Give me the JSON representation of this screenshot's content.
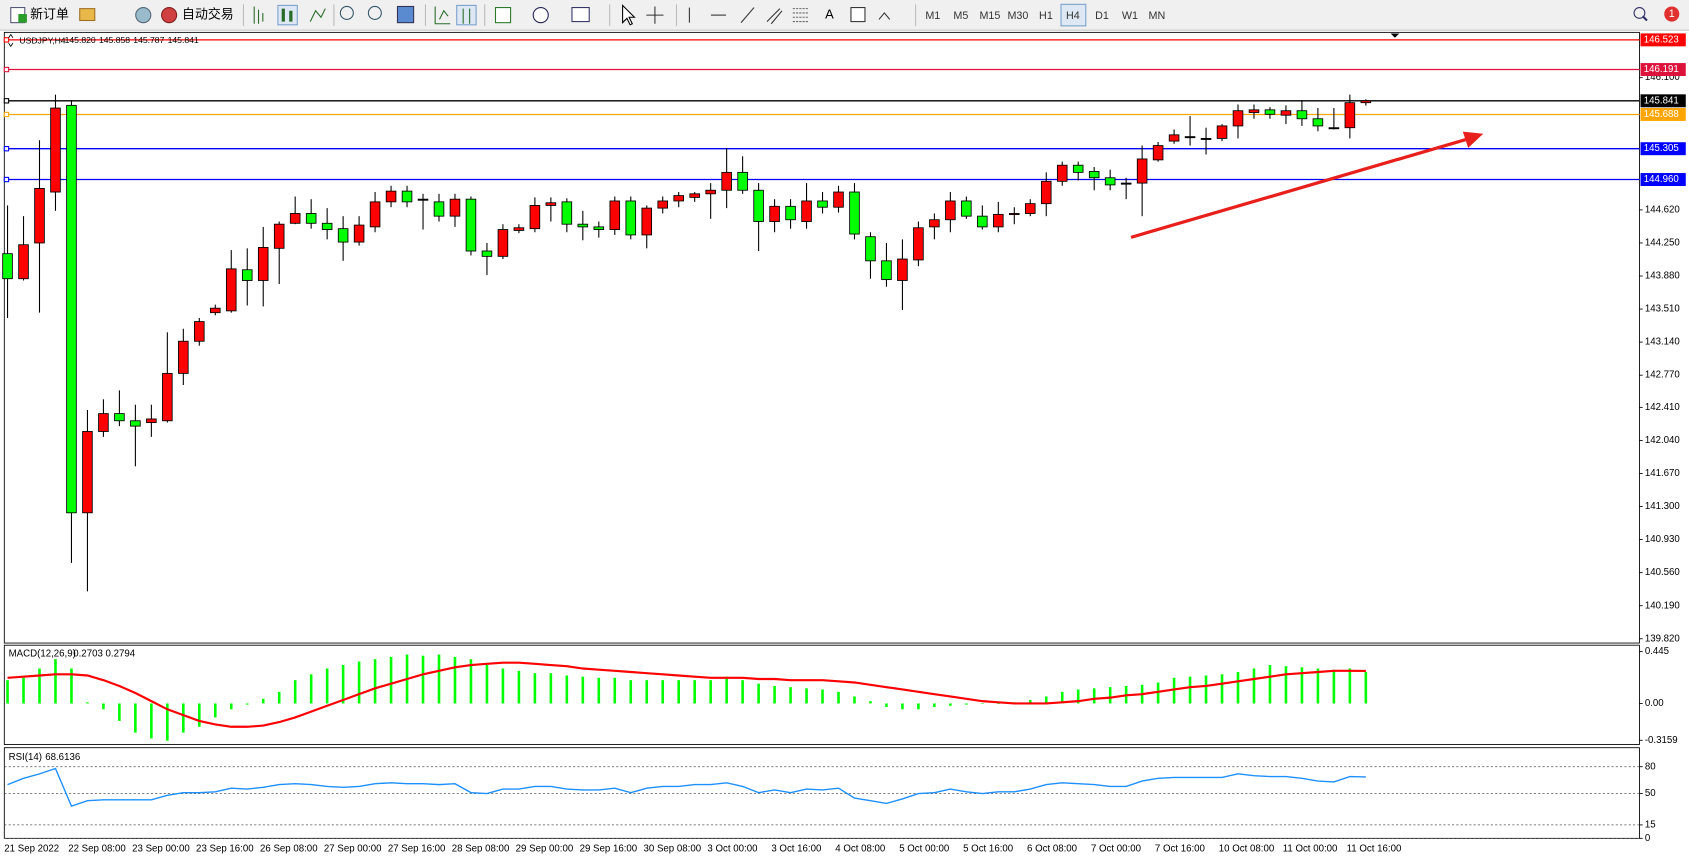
{
  "toolbar": {
    "new_order": "新订单",
    "auto_trading": "自动交易",
    "text_tool": "A",
    "timeframes": [
      "M1",
      "M5",
      "M15",
      "M30",
      "H1",
      "H4",
      "D1",
      "W1",
      "MN"
    ],
    "alert_count": 1
  },
  "chart_data": [
    {
      "type": "candlestick",
      "symbol": "USDJPY,H4",
      "header_prices": [
        "145.820",
        "145.858",
        "145.787",
        "145.841"
      ],
      "up_color": "#ff0000",
      "down_color": "#00ff00",
      "x": [
        "21 Sep 2022",
        null,
        null,
        null,
        "22 Sep 08:00",
        null,
        null,
        null,
        "23 Sep 00:00",
        null,
        null,
        null,
        "23 Sep 16:00",
        null,
        null,
        null,
        "26 Sep 08:00",
        null,
        null,
        null,
        "27 Sep 00:00",
        null,
        null,
        null,
        "27 Sep 16:00",
        null,
        null,
        null,
        "28 Sep 08:00",
        null,
        null,
        null,
        "29 Sep 00:00",
        null,
        null,
        null,
        "29 Sep 16:00",
        null,
        null,
        null,
        "30 Sep 08:00",
        null,
        null,
        null,
        "3 Oct 00:00",
        null,
        null,
        null,
        "3 Oct 16:00",
        null,
        null,
        null,
        "4 Oct 08:00",
        null,
        null,
        null,
        "5 Oct 00:00",
        null,
        null,
        null,
        "5 Oct 16:00",
        null,
        null,
        null,
        "6 Oct 08:00",
        null,
        null,
        null,
        "7 Oct 00:00",
        null,
        null,
        null,
        "7 Oct 16:00",
        null,
        null,
        null,
        "10 Oct 08:00",
        null,
        null,
        null,
        "11 Oct 00:00",
        null,
        null,
        null,
        "11 Oct 16:00",
        null
      ],
      "open": [
        144.13,
        143.85,
        144.25,
        144.82,
        145.79,
        141.23,
        142.14,
        142.34,
        142.26,
        142.24,
        142.26,
        142.79,
        143.15,
        143.47,
        143.49,
        143.95,
        143.83,
        144.19,
        144.47,
        144.58,
        144.47,
        144.41,
        144.26,
        144.43,
        144.71,
        144.83,
        144.74,
        144.71,
        144.55,
        144.74,
        144.16,
        144.1,
        144.39,
        144.41,
        144.67,
        144.71,
        144.46,
        144.43,
        144.4,
        144.72,
        144.34,
        144.64,
        144.72,
        144.76,
        144.8,
        144.84,
        145.04,
        144.84,
        144.49,
        144.66,
        144.49,
        144.72,
        144.65,
        144.82,
        144.32,
        144.05,
        143.83,
        144.06,
        144.43,
        144.51,
        144.72,
        144.55,
        144.43,
        144.57,
        144.58,
        144.69,
        144.94,
        145.12,
        145.05,
        144.98,
        144.92,
        144.92,
        145.18,
        145.39,
        145.44,
        145.42,
        145.42,
        145.56,
        145.71,
        145.74,
        145.68,
        145.73,
        145.64,
        145.54,
        145.54,
        145.82
      ],
      "high": [
        144.67,
        144.55,
        145.4,
        145.91,
        145.85,
        142.38,
        142.5,
        142.6,
        142.44,
        142.44,
        143.25,
        143.29,
        143.41,
        143.56,
        144.17,
        144.19,
        144.43,
        144.49,
        144.77,
        144.74,
        144.64,
        144.55,
        144.55,
        144.82,
        144.89,
        144.89,
        144.8,
        144.8,
        144.8,
        144.77,
        144.25,
        144.46,
        144.46,
        144.76,
        144.76,
        144.75,
        144.61,
        144.49,
        144.77,
        144.77,
        144.67,
        144.77,
        144.82,
        144.82,
        144.92,
        145.31,
        145.22,
        144.92,
        144.74,
        144.74,
        144.92,
        144.82,
        144.89,
        144.92,
        144.37,
        144.25,
        144.29,
        144.49,
        144.58,
        144.82,
        144.77,
        144.67,
        144.71,
        144.65,
        144.74,
        145.04,
        145.16,
        145.16,
        145.1,
        145.07,
        144.98,
        145.34,
        145.38,
        145.52,
        145.67,
        145.54,
        145.58,
        145.8,
        145.8,
        145.77,
        145.79,
        145.85,
        145.76,
        145.76,
        145.91,
        145.858
      ],
      "low": [
        143.41,
        143.83,
        143.47,
        144.61,
        140.67,
        140.35,
        142.08,
        142.2,
        141.75,
        142.08,
        142.24,
        142.66,
        143.1,
        143.44,
        143.47,
        143.55,
        143.54,
        143.79,
        144.46,
        144.41,
        144.29,
        144.05,
        144.22,
        144.37,
        144.65,
        144.65,
        144.4,
        144.49,
        144.43,
        144.11,
        143.89,
        144.07,
        144.36,
        144.37,
        144.49,
        144.37,
        144.28,
        144.31,
        144.34,
        144.29,
        144.19,
        144.58,
        144.65,
        144.71,
        144.52,
        144.64,
        144.8,
        144.16,
        144.37,
        144.41,
        144.41,
        144.58,
        144.59,
        144.29,
        143.85,
        143.76,
        143.5,
        143.99,
        144.29,
        144.37,
        144.52,
        144.4,
        144.37,
        144.46,
        144.55,
        144.55,
        144.89,
        144.95,
        144.84,
        144.84,
        144.74,
        144.55,
        145.16,
        145.36,
        145.34,
        145.24,
        145.39,
        145.42,
        145.64,
        145.64,
        145.58,
        145.56,
        145.5,
        145.52,
        145.42,
        145.787
      ],
      "close": [
        143.85,
        144.23,
        144.86,
        145.76,
        141.23,
        142.14,
        142.34,
        142.26,
        142.2,
        142.28,
        142.79,
        143.15,
        143.37,
        143.52,
        143.96,
        143.83,
        144.2,
        144.46,
        144.58,
        144.47,
        144.4,
        144.26,
        144.45,
        144.71,
        144.83,
        144.71,
        144.74,
        144.55,
        144.74,
        144.16,
        144.1,
        144.4,
        144.42,
        144.67,
        144.7,
        144.46,
        144.43,
        144.4,
        144.72,
        144.34,
        144.64,
        144.72,
        144.78,
        144.8,
        144.84,
        145.04,
        144.84,
        144.49,
        144.66,
        144.51,
        144.72,
        144.65,
        144.82,
        144.35,
        144.05,
        143.84,
        144.07,
        144.42,
        144.51,
        144.72,
        144.55,
        144.43,
        144.57,
        144.58,
        144.69,
        144.94,
        145.12,
        145.04,
        144.98,
        144.9,
        144.92,
        145.19,
        145.34,
        145.46,
        145.44,
        145.42,
        145.56,
        145.73,
        145.74,
        145.69,
        145.73,
        145.64,
        145.56,
        145.54,
        145.82,
        145.841
      ],
      "ylim": [
        139.772,
        146.607
      ],
      "yticks": [
        {
          "value": 146.1,
          "label": "146.100"
        },
        {
          "value": 144.62,
          "label": "144.620"
        },
        {
          "value": 144.25,
          "label": "144.250"
        },
        {
          "value": 143.88,
          "label": "143.880"
        },
        {
          "value": 143.51,
          "label": "143.510"
        },
        {
          "value": 143.14,
          "label": "143.140"
        },
        {
          "value": 142.77,
          "label": "142.770"
        },
        {
          "value": 142.41,
          "label": "142.410"
        },
        {
          "value": 142.04,
          "label": "142.040"
        },
        {
          "value": 141.67,
          "label": "141.670"
        },
        {
          "value": 141.3,
          "label": "141.300"
        },
        {
          "value": 140.93,
          "label": "140.930"
        },
        {
          "value": 140.56,
          "label": "140.560"
        },
        {
          "value": 140.19,
          "label": "140.190"
        },
        {
          "value": 139.82,
          "label": "139.820"
        }
      ],
      "levels": [
        {
          "value": 146.523,
          "color": "#ff0000"
        },
        {
          "value": 146.191,
          "color": "#dc143c"
        },
        {
          "value": 145.841,
          "color": "#000000"
        },
        {
          "value": 145.688,
          "color": "#ffa500"
        },
        {
          "value": 145.305,
          "color": "#0000ff"
        },
        {
          "value": 144.96,
          "label": "144.960",
          "color": "#0000ff"
        }
      ]
    },
    {
      "type": "macd",
      "title": "MACD(12,26,9)",
      "histogram_color": "#00ff00",
      "signal_color": "#ff0000",
      "histogram": [
        0.2,
        0.22,
        0.3,
        0.38,
        0.3,
        0.01,
        -0.05,
        -0.15,
        -0.25,
        -0.3,
        -0.32,
        -0.25,
        -0.2,
        -0.12,
        -0.05,
        -0.01,
        0.04,
        0.1,
        0.2,
        0.25,
        0.3,
        0.33,
        0.36,
        0.38,
        0.4,
        0.42,
        0.41,
        0.42,
        0.4,
        0.38,
        0.33,
        0.3,
        0.28,
        0.26,
        0.26,
        0.24,
        0.23,
        0.22,
        0.22,
        0.2,
        0.2,
        0.2,
        0.2,
        0.2,
        0.2,
        0.23,
        0.2,
        0.17,
        0.15,
        0.14,
        0.13,
        0.12,
        0.1,
        0.06,
        0.02,
        -0.03,
        -0.05,
        -0.05,
        -0.03,
        -0.02,
        -0.01,
        0,
        0,
        0.01,
        0.03,
        0.06,
        0.1,
        0.12,
        0.13,
        0.14,
        0.15,
        0.16,
        0.18,
        0.22,
        0.23,
        0.24,
        0.25,
        0.27,
        0.3,
        0.33,
        0.32,
        0.31,
        0.3,
        0.29,
        0.3,
        0.2703
      ],
      "signal": [
        0.22,
        0.23,
        0.24,
        0.25,
        0.25,
        0.24,
        0.2,
        0.15,
        0.09,
        0.02,
        -0.05,
        -0.1,
        -0.15,
        -0.18,
        -0.2,
        -0.2,
        -0.19,
        -0.16,
        -0.12,
        -0.07,
        -0.02,
        0.03,
        0.08,
        0.13,
        0.17,
        0.21,
        0.25,
        0.28,
        0.31,
        0.33,
        0.34,
        0.35,
        0.35,
        0.34,
        0.33,
        0.32,
        0.3,
        0.29,
        0.28,
        0.27,
        0.26,
        0.25,
        0.24,
        0.23,
        0.22,
        0.22,
        0.22,
        0.21,
        0.21,
        0.2,
        0.2,
        0.2,
        0.19,
        0.18,
        0.16,
        0.14,
        0.12,
        0.1,
        0.08,
        0.06,
        0.04,
        0.02,
        0.01,
        0,
        0,
        0,
        0.01,
        0.02,
        0.04,
        0.05,
        0.07,
        0.08,
        0.1,
        0.12,
        0.14,
        0.15,
        0.17,
        0.19,
        0.21,
        0.23,
        0.25,
        0.26,
        0.27,
        0.28,
        0.28,
        0.2794
      ],
      "ylim": [
        -0.352,
        0.5
      ],
      "yticks": [
        0.445,
        {
          "value": 0,
          "label": "0.00"
        },
        -0.3159
      ]
    },
    {
      "type": "line",
      "title": "RSI(14)",
      "color": "#1e90ff",
      "values": [
        60,
        67,
        72,
        78,
        36,
        42,
        43,
        43,
        43,
        43,
        48,
        51,
        51,
        52,
        56,
        55,
        57,
        60,
        61,
        60,
        58,
        57,
        58,
        61,
        62,
        61,
        61,
        60,
        61,
        51,
        50,
        55,
        55,
        58,
        58,
        55,
        54,
        54,
        56,
        51,
        56,
        58,
        58,
        60,
        60,
        62,
        58,
        51,
        54,
        51,
        55,
        54,
        56,
        45,
        42,
        39,
        44,
        50,
        51,
        55,
        52,
        50,
        52,
        52,
        55,
        60,
        62,
        61,
        60,
        58,
        58,
        64,
        67,
        68,
        68,
        68,
        68,
        72,
        70,
        69,
        69,
        67,
        64,
        63,
        69,
        68.6136
      ],
      "ylim": [
        0,
        100
      ],
      "yticks": [
        80,
        50,
        15,
        0
      ]
    }
  ]
}
